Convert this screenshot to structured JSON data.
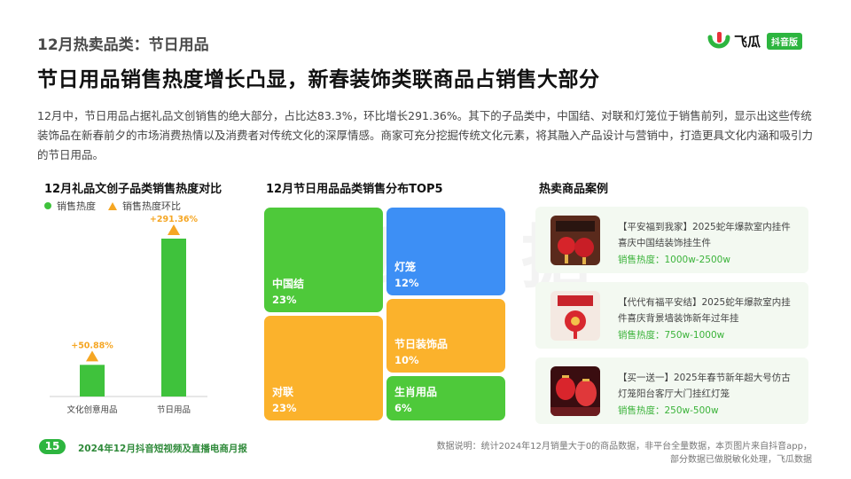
{
  "header": {
    "section_title": "12月热卖品类：节日用品",
    "headline": "节日用品销售热度增长凸显，新春装饰类联商品占销售大部分",
    "intro": "12月中，节日用品占据礼品文创销售的绝大部分，占比达83.3%，环比增长291.36%。其下的子品类中，中国结、对联和灯笼位于销售前列，显示出这些传统装饰品在新春前夕的市场消费热情以及消费者对传统文化的深厚情感。商家可充分挖掘传统文化元素，将其融入产品设计与营销中，打造更具文化内涵和吸引力的节日用品。"
  },
  "logo": {
    "text": "飞瓜",
    "badge": "抖音版",
    "brand_color": "#2db53f",
    "accent_color": "#e8313a"
  },
  "watermark": "飞瓜数据",
  "left_panel": {
    "title": "12月礼品文创子品类销售热度对比",
    "legend": [
      {
        "label": "销售热度",
        "shape": "dot",
        "color": "#3fc23c"
      },
      {
        "label": "销售热度环比",
        "shape": "triangle",
        "color": "#f5a623"
      }
    ]
  },
  "chart_data": [
    {
      "type": "bar",
      "title": "12月礼品文创子品类销售热度对比",
      "categories": [
        "文化创意用品",
        "节日用品"
      ],
      "series": [
        {
          "name": "销售热度",
          "values": [
            16.7,
            83.3
          ],
          "color": "#3fc23c"
        },
        {
          "name": "销售热度环比",
          "values": [
            50.88,
            291.36
          ],
          "labels": [
            "+50.88%",
            "+291.36%"
          ],
          "color": "#f5a623"
        }
      ]
    },
    {
      "type": "treemap",
      "title": "12月节日用品品类销售分布TOP5",
      "items": [
        {
          "name": "中国结",
          "value": 23,
          "label": "23%",
          "color": "#4ec93a"
        },
        {
          "name": "对联",
          "value": 23,
          "label": "23%",
          "color": "#fbb22c"
        },
        {
          "name": "灯笼",
          "value": 12,
          "label": "12%",
          "color": "#3d8ff5"
        },
        {
          "name": "节日装饰品",
          "value": 10,
          "label": "10%",
          "color": "#fbb22c"
        },
        {
          "name": "生肖用品",
          "value": 6,
          "label": "6%",
          "color": "#4ec93a"
        }
      ]
    }
  ],
  "middle_panel": {
    "title": "12月节日用品品类销售分布TOP5"
  },
  "right_panel": {
    "title": "热卖商品案例",
    "cards": [
      {
        "title": "【平安福到我家】2025蛇年爆款室内挂件喜庆中国结装饰挂生件",
        "heat_label": "销售热度：",
        "heat_value": "1000w-2500w"
      },
      {
        "title": "【代代有福平安结】2025蛇年爆款室内挂件喜庆背景墙装饰新年过年挂",
        "heat_label": "销售热度：",
        "heat_value": "750w-1000w"
      },
      {
        "title": "【买一送一】2025年春节新年超大号仿古灯笼阳台客厅大门挂红灯笼",
        "heat_label": "销售热度：",
        "heat_value": "250w-500w"
      }
    ]
  },
  "footer": {
    "page_number": "15",
    "report_name": "2024年12月抖音短视频及直播电商月报",
    "note_line1": "数据说明：统计2024年12月销量大于0的商品数据，非平台全量数据，本页图片来自抖音app，",
    "note_line2": "部分数据已做脱敏化处理，飞瓜数据"
  }
}
